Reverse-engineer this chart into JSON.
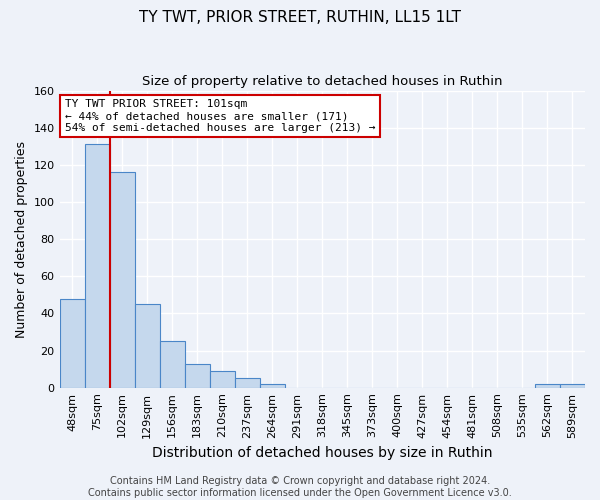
{
  "title": "TY TWT, PRIOR STREET, RUTHIN, LL15 1LT",
  "subtitle": "Size of property relative to detached houses in Ruthin",
  "xlabel": "Distribution of detached houses by size in Ruthin",
  "ylabel": "Number of detached properties",
  "categories": [
    "48sqm",
    "75sqm",
    "102sqm",
    "129sqm",
    "156sqm",
    "183sqm",
    "210sqm",
    "237sqm",
    "264sqm",
    "291sqm",
    "318sqm",
    "345sqm",
    "373sqm",
    "400sqm",
    "427sqm",
    "454sqm",
    "481sqm",
    "508sqm",
    "535sqm",
    "562sqm",
    "589sqm"
  ],
  "values": [
    48,
    131,
    116,
    45,
    25,
    13,
    9,
    5,
    2,
    0,
    0,
    0,
    0,
    0,
    0,
    0,
    0,
    0,
    0,
    2,
    2
  ],
  "bar_color": "#c5d8ed",
  "bar_edge_color": "#4a86c8",
  "background_color": "#eef2f9",
  "grid_color": "#ffffff",
  "vline_index": 2,
  "vline_color": "#cc0000",
  "ylim": [
    0,
    160
  ],
  "yticks": [
    0,
    20,
    40,
    60,
    80,
    100,
    120,
    140,
    160
  ],
  "annotation_box_text": "TY TWT PRIOR STREET: 101sqm\n← 44% of detached houses are smaller (171)\n54% of semi-detached houses are larger (213) →",
  "annotation_box_color": "#ffffff",
  "annotation_box_edge_color": "#cc0000",
  "footer_text": "Contains HM Land Registry data © Crown copyright and database right 2024.\nContains public sector information licensed under the Open Government Licence v3.0.",
  "title_fontsize": 11,
  "subtitle_fontsize": 9.5,
  "xlabel_fontsize": 10,
  "ylabel_fontsize": 9,
  "tick_fontsize": 8,
  "annotation_fontsize": 8,
  "footer_fontsize": 7
}
